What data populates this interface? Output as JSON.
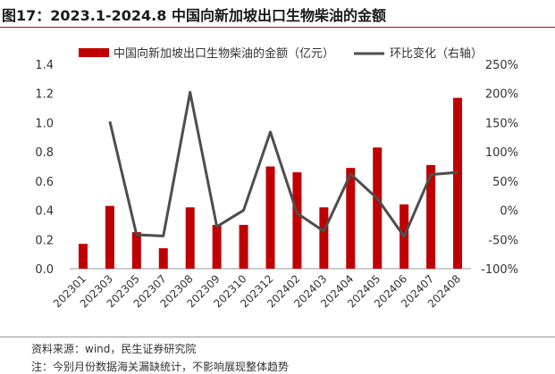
{
  "title": "图17：2023.1-2024.8 中国向新加坡出口生物柴油的金额",
  "source": "资料来源：wind，民生证券研究院",
  "note": "注：今别月份数据海关漏缺统计，不影响展现整体趋势",
  "colors": {
    "bar": "#c00000",
    "line": "#4d4d4d",
    "rule": "#c00000"
  },
  "chart_data": {
    "type": "bar",
    "categories": [
      "202301",
      "202303",
      "202305",
      "202307",
      "202308",
      "202309",
      "202310",
      "202312",
      "202402",
      "202403",
      "202404",
      "202405",
      "202406",
      "202407",
      "202408"
    ],
    "series": [
      {
        "name": "中国向新加坡出口生物柴油的金额（亿元）",
        "type": "bar",
        "axis": "left",
        "values": [
          0.17,
          0.43,
          0.25,
          0.14,
          0.42,
          0.3,
          0.3,
          0.7,
          0.66,
          0.42,
          0.69,
          0.83,
          0.44,
          0.71,
          1.17
        ]
      },
      {
        "name": "环比变化（右轴）",
        "type": "line",
        "axis": "right",
        "values": [
          null,
          152,
          -42,
          -44,
          202,
          -28,
          0,
          134,
          -5,
          -36,
          62,
          20,
          -45,
          61,
          65
        ]
      }
    ],
    "ylim_left": [
      0,
      1.4
    ],
    "yticks_left": [
      "0.0",
      "0.2",
      "0.4",
      "0.6",
      "0.8",
      "1.0",
      "1.2",
      "1.4"
    ],
    "ylim_right": [
      -100,
      250
    ],
    "yticks_right": [
      "-100%",
      "-50%",
      "0%",
      "50%",
      "100%",
      "150%",
      "200%",
      "250%"
    ],
    "legend_position": "top"
  }
}
